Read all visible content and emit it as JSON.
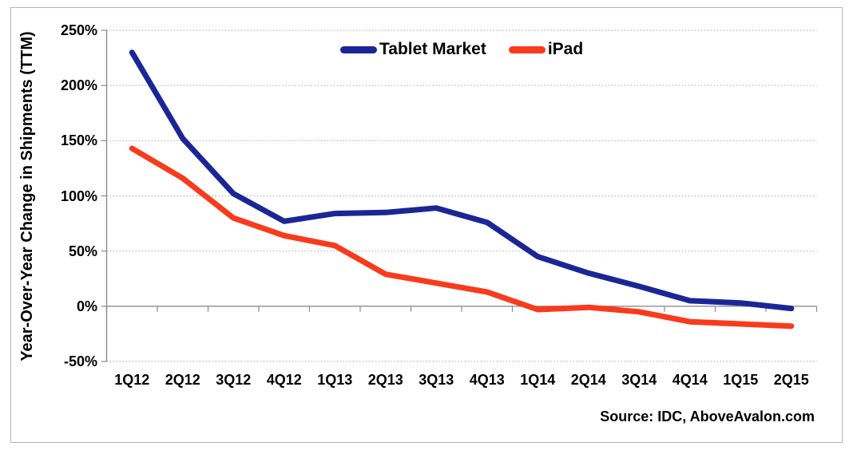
{
  "chart_data": {
    "type": "line",
    "title": "",
    "xlabel": "",
    "ylabel": "Year-Over-Year Change in Shipments (TTM)",
    "categories": [
      "1Q12",
      "2Q12",
      "3Q12",
      "4Q12",
      "1Q13",
      "2Q13",
      "3Q13",
      "4Q13",
      "1Q14",
      "2Q14",
      "3Q14",
      "4Q14",
      "1Q15",
      "2Q15"
    ],
    "series": [
      {
        "name": "Tablet Market",
        "color": "#1B2696",
        "values": [
          230,
          152,
          102,
          77,
          84,
          85,
          89,
          76,
          45,
          30,
          18,
          5,
          3,
          -2
        ]
      },
      {
        "name": "iPad",
        "color": "#F93A1D",
        "values": [
          143,
          116,
          80,
          64,
          55,
          29,
          21,
          13,
          -3,
          -1,
          -5,
          -14,
          -16,
          -18
        ]
      }
    ],
    "ylim": [
      -50,
      250
    ],
    "ytick_step": 50,
    "ytick_labels": [
      "250%",
      "200%",
      "150%",
      "100%",
      "50%",
      "0%",
      "-50%"
    ],
    "ytick_values": [
      250,
      200,
      150,
      100,
      50,
      0,
      -50
    ],
    "grid": "horizontal-dotted",
    "legend_position": "top-center",
    "source_note": "Source: IDC, AboveAvalon.com"
  },
  "colors": {
    "frame_border": "#b3b3b3",
    "gridline": "#b7b7b7",
    "axis_line": "#8c8c8c",
    "text": "#000000"
  }
}
